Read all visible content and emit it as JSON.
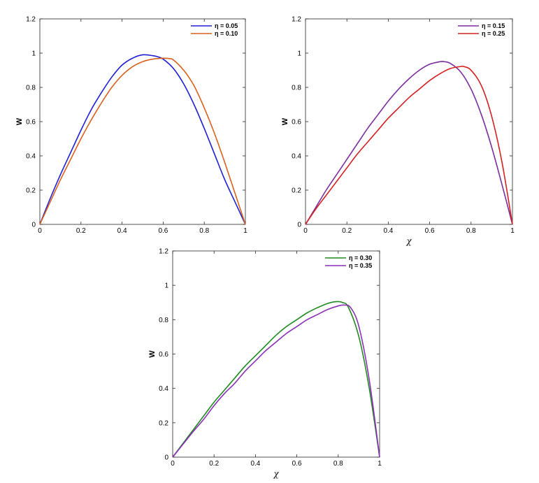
{
  "chart_data": [
    {
      "type": "line",
      "xlabel": "",
      "ylabel": "W",
      "xlim": [
        0,
        1
      ],
      "ylim": [
        0,
        1.2
      ],
      "xticks": [
        "0",
        "0.2",
        "0.4",
        "0.6",
        "0.8",
        "1"
      ],
      "yticks": [
        "0",
        "0.2",
        "0.4",
        "0.6",
        "0.8",
        "1",
        "1.2"
      ],
      "grid": false,
      "legend_position": "top-right",
      "series": [
        {
          "name": "η = 0.05",
          "color": "#1f1fd6",
          "x": [
            0,
            0.05,
            0.1,
            0.15,
            0.2,
            0.25,
            0.3,
            0.35,
            0.4,
            0.45,
            0.5,
            0.55,
            0.57,
            0.6,
            0.65,
            0.7,
            0.75,
            0.8,
            0.85,
            0.9,
            0.95,
            1
          ],
          "y": [
            0,
            0.15,
            0.29,
            0.42,
            0.55,
            0.67,
            0.77,
            0.86,
            0.93,
            0.97,
            0.99,
            0.985,
            0.98,
            0.965,
            0.91,
            0.82,
            0.7,
            0.56,
            0.41,
            0.26,
            0.13,
            0
          ]
        },
        {
          "name": "η = 0.10",
          "color": "#d9601e",
          "x": [
            0,
            0.05,
            0.1,
            0.15,
            0.2,
            0.25,
            0.3,
            0.35,
            0.4,
            0.45,
            0.5,
            0.55,
            0.6,
            0.63,
            0.65,
            0.7,
            0.75,
            0.8,
            0.85,
            0.9,
            0.95,
            1
          ],
          "y": [
            0,
            0.13,
            0.26,
            0.38,
            0.5,
            0.61,
            0.71,
            0.8,
            0.87,
            0.92,
            0.95,
            0.965,
            0.97,
            0.968,
            0.96,
            0.9,
            0.81,
            0.68,
            0.53,
            0.36,
            0.18,
            0
          ]
        }
      ]
    },
    {
      "type": "line",
      "xlabel": "χ",
      "ylabel": "W",
      "xlim": [
        0,
        1
      ],
      "ylim": [
        0,
        1.2
      ],
      "xticks": [
        "0",
        "0.2",
        "0.4",
        "0.6",
        "0.8",
        "1"
      ],
      "yticks": [
        "0",
        "0.2",
        "0.4",
        "0.6",
        "0.8",
        "1",
        "1.2"
      ],
      "grid": false,
      "legend_position": "top-right",
      "series": [
        {
          "name": "η = 0.15",
          "color": "#7b2d9e",
          "x": [
            0,
            0.05,
            0.1,
            0.15,
            0.2,
            0.25,
            0.3,
            0.35,
            0.4,
            0.45,
            0.5,
            0.55,
            0.6,
            0.65,
            0.67,
            0.7,
            0.75,
            0.8,
            0.85,
            0.9,
            0.95,
            1
          ],
          "y": [
            0,
            0.1,
            0.2,
            0.29,
            0.38,
            0.47,
            0.56,
            0.64,
            0.72,
            0.79,
            0.85,
            0.9,
            0.935,
            0.95,
            0.95,
            0.94,
            0.89,
            0.79,
            0.64,
            0.45,
            0.23,
            0
          ]
        },
        {
          "name": "η = 0.25",
          "color": "#d42020",
          "x": [
            0,
            0.05,
            0.1,
            0.15,
            0.2,
            0.25,
            0.3,
            0.35,
            0.4,
            0.45,
            0.5,
            0.55,
            0.6,
            0.65,
            0.7,
            0.75,
            0.77,
            0.8,
            0.85,
            0.9,
            0.95,
            1
          ],
          "y": [
            0,
            0.09,
            0.17,
            0.25,
            0.33,
            0.41,
            0.48,
            0.55,
            0.62,
            0.68,
            0.74,
            0.79,
            0.84,
            0.88,
            0.91,
            0.922,
            0.92,
            0.9,
            0.81,
            0.63,
            0.36,
            0
          ]
        }
      ]
    },
    {
      "type": "line",
      "xlabel": "χ",
      "ylabel": "W",
      "xlim": [
        0,
        1
      ],
      "ylim": [
        0,
        1.2
      ],
      "xticks": [
        "0",
        "0.2",
        "0.4",
        "0.6",
        "0.8",
        "1"
      ],
      "yticks": [
        "0",
        "0.2",
        "0.4",
        "0.6",
        "0.8",
        "1",
        "1.2"
      ],
      "grid": false,
      "legend_position": "top-right",
      "series": [
        {
          "name": "η = 0.30",
          "color": "#1f8a1f",
          "x": [
            0,
            0.05,
            0.1,
            0.15,
            0.2,
            0.25,
            0.3,
            0.35,
            0.4,
            0.45,
            0.5,
            0.55,
            0.6,
            0.65,
            0.7,
            0.75,
            0.79,
            0.82,
            0.85,
            0.9,
            0.95,
            1
          ],
          "y": [
            0,
            0.08,
            0.16,
            0.24,
            0.32,
            0.39,
            0.46,
            0.53,
            0.59,
            0.65,
            0.71,
            0.76,
            0.8,
            0.84,
            0.87,
            0.895,
            0.905,
            0.9,
            0.87,
            0.7,
            0.4,
            0
          ]
        },
        {
          "name": "η = 0.35",
          "color": "#8a2fb8",
          "x": [
            0,
            0.05,
            0.1,
            0.15,
            0.2,
            0.25,
            0.3,
            0.35,
            0.4,
            0.45,
            0.5,
            0.55,
            0.6,
            0.65,
            0.7,
            0.75,
            0.8,
            0.83,
            0.86,
            0.9,
            0.95,
            1
          ],
          "y": [
            0,
            0.075,
            0.15,
            0.22,
            0.3,
            0.37,
            0.43,
            0.5,
            0.56,
            0.62,
            0.67,
            0.72,
            0.76,
            0.8,
            0.83,
            0.86,
            0.88,
            0.885,
            0.87,
            0.76,
            0.45,
            0
          ]
        }
      ]
    }
  ]
}
